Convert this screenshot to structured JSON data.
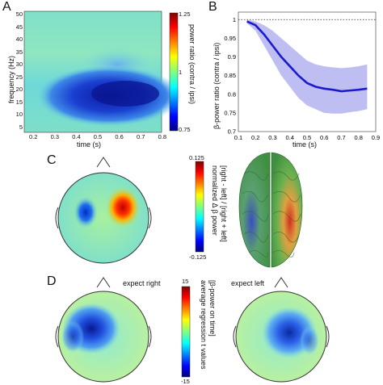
{
  "panels": {
    "A": {
      "label": "A",
      "xlabel": "time (s)",
      "ylabel": "frequency (Hz)",
      "xticks": [
        "0.2",
        "0.3",
        "0.4",
        "0.5",
        "0.6",
        "0.7",
        "0.8"
      ],
      "yticks": [
        "50",
        "45",
        "40",
        "35",
        "30",
        "25",
        "20",
        "15",
        "10",
        "5"
      ],
      "colorbar": {
        "label": "power ratio (contra / ipsi)",
        "ticks": [
          "1.25",
          "1",
          "0.75"
        ]
      }
    },
    "B": {
      "label": "B",
      "xlabel": "time (s)",
      "ylabel": "β-power ratio (contra / ipsi)",
      "xticks": [
        "0.1",
        "0.2",
        "0.3",
        "0.4",
        "0.5",
        "0.6",
        "0.7",
        "0.8",
        "0.9"
      ],
      "yticks": [
        "1",
        "0.95",
        "0.9",
        "0.85",
        "0.8",
        "0.75",
        "0.7"
      ]
    },
    "C": {
      "label": "C",
      "colorbar": {
        "label_line1": "normalized Δ β power",
        "label_line2": "[right - left] / [right + left]",
        "ticks": [
          "0.125",
          "-0.125"
        ]
      }
    },
    "D": {
      "label": "D",
      "left_title": "expect right",
      "right_title": "expect left",
      "colorbar": {
        "label_line1": "average regression t values",
        "label_line2": "[β-power on time]",
        "ticks": [
          "15",
          "-15"
        ]
      }
    }
  },
  "chart_data": [
    {
      "type": "heatmap",
      "panel": "A",
      "xlabel": "time (s)",
      "ylabel": "frequency (Hz)",
      "xlim": [
        0.15,
        0.9
      ],
      "ylim": [
        5,
        50
      ],
      "colorbar_range": [
        0.75,
        1.25
      ],
      "note_region": {
        "x": [
          0.4,
          0.85
        ],
        "y": [
          12,
          28
        ],
        "min_value": 0.78
      }
    },
    {
      "type": "line",
      "panel": "B",
      "xlabel": "time (s)",
      "ylabel": "β-power ratio (contra / ipsi)",
      "xlim": [
        0.1,
        0.9
      ],
      "ylim": [
        0.7,
        1.02
      ],
      "reference_line": 1.0,
      "series": [
        {
          "x": [
            0.15,
            0.2,
            0.25,
            0.3,
            0.35,
            0.4,
            0.45,
            0.5,
            0.55,
            0.6,
            0.65,
            0.7,
            0.75,
            0.8,
            0.85
          ],
          "values": [
            0.995,
            0.985,
            0.96,
            0.93,
            0.9,
            0.875,
            0.85,
            0.83,
            0.82,
            0.815,
            0.812,
            0.808,
            0.81,
            0.812,
            0.815
          ],
          "lower": [
            0.99,
            0.97,
            0.93,
            0.89,
            0.85,
            0.82,
            0.79,
            0.77,
            0.76,
            0.75,
            0.748,
            0.748,
            0.752,
            0.755,
            0.76
          ],
          "upper": [
            1.0,
            0.995,
            0.985,
            0.97,
            0.95,
            0.93,
            0.91,
            0.89,
            0.88,
            0.875,
            0.872,
            0.87,
            0.872,
            0.875,
            0.88
          ]
        }
      ]
    }
  ]
}
